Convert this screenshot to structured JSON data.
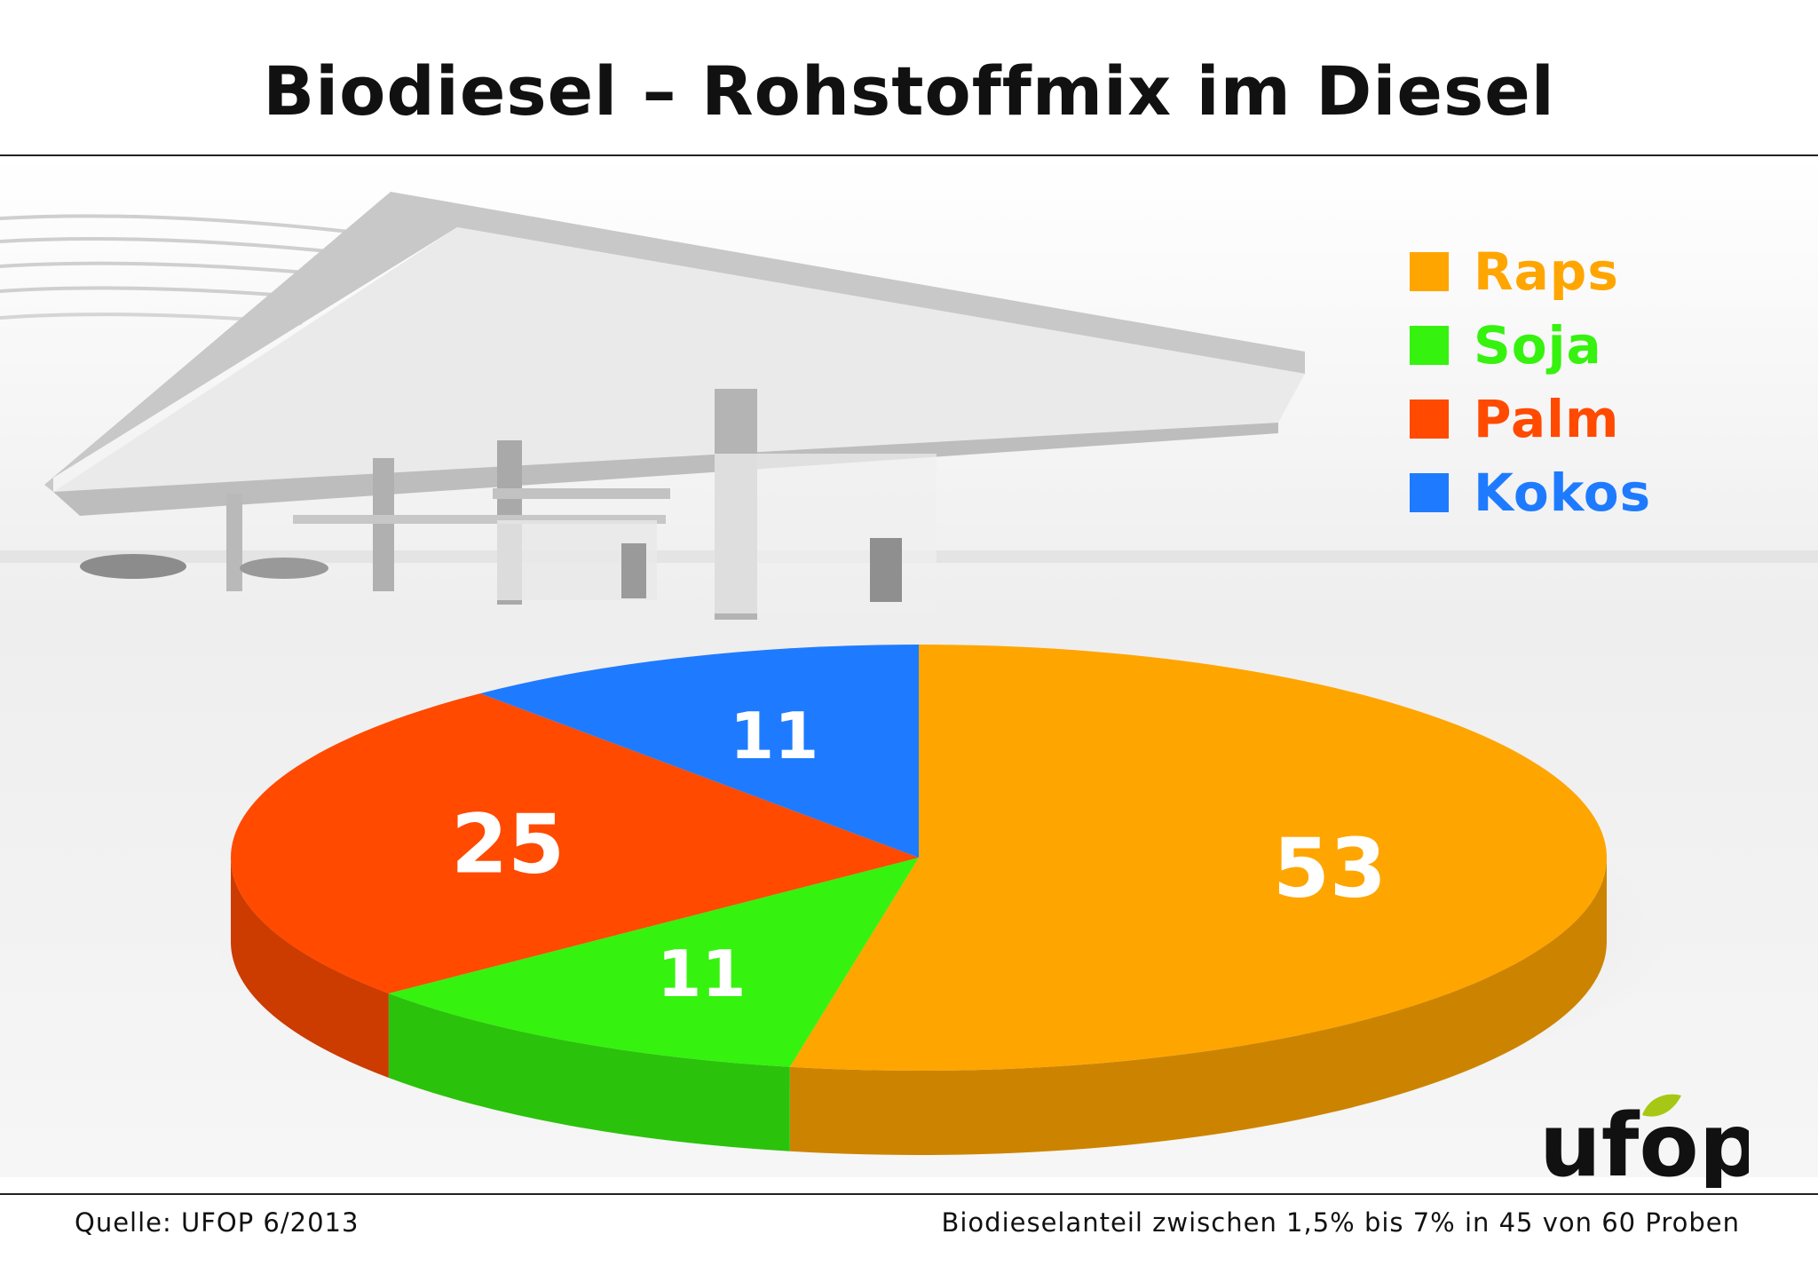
{
  "title": "Biodiesel – Rohstoffmix im Diesel",
  "footer": {
    "source": "Quelle: UFOP 6/2013",
    "note": "Biodieselanteil zwischen 1,5% bis 7% in 45 von 60 Proben"
  },
  "logo": {
    "text": "ufop",
    "colors": {
      "text": "#111111",
      "leaf": "#a6c814"
    }
  },
  "chart_data": {
    "type": "pie",
    "style": "3d",
    "title": "Biodiesel – Rohstoffmix im Diesel",
    "legend_position": "top-right",
    "slices": [
      {
        "label": "Raps",
        "value": 53,
        "color": "#ffa500"
      },
      {
        "label": "Soja",
        "value": 11,
        "color": "#36f20f"
      },
      {
        "label": "Palm",
        "value": 25,
        "color": "#ff4a00"
      },
      {
        "label": "Kokos",
        "value": 11,
        "color": "#1e7bff"
      }
    ]
  }
}
